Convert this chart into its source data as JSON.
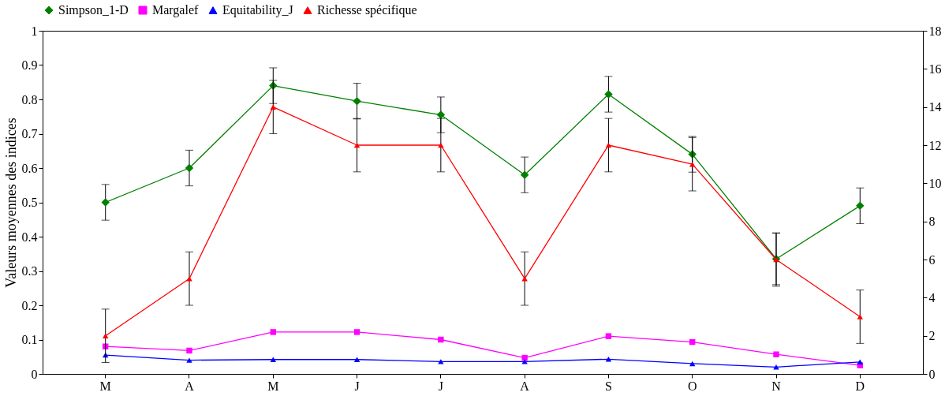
{
  "chart_data": {
    "type": "line",
    "ylabel": "Valeurs moyennes des indices",
    "categories": [
      "M",
      "A",
      "M",
      "J",
      "J",
      "A",
      "S",
      "O",
      "N",
      "D"
    ],
    "series": [
      {
        "name": "Simpson_1-D",
        "color": "#008000",
        "marker": "diamond",
        "values": [
          0.5,
          0.6,
          0.84,
          0.795,
          0.755,
          0.58,
          0.815,
          0.64,
          0.335,
          0.49
        ],
        "errors": [
          0.052,
          0.052,
          0.052,
          0.052,
          0.052,
          0.052,
          0.052,
          0.052,
          0.075,
          0.052
        ]
      },
      {
        "name": "Margalef",
        "color": "#ff00ff",
        "marker": "square",
        "values": [
          0.08,
          0.068,
          0.122,
          0.122,
          0.1,
          0.047,
          0.11,
          0.093,
          0.057,
          0.025
        ]
      },
      {
        "name": "Equitability_J",
        "color": "#0000ff",
        "marker": "triangle",
        "values": [
          0.055,
          0.04,
          0.042,
          0.042,
          0.036,
          0.036,
          0.043,
          0.03,
          0.02,
          0.035
        ]
      },
      {
        "name": "Richesse spécifique",
        "color": "#ff0000",
        "marker": "triangle",
        "axis": "y2",
        "values": [
          2,
          5,
          14,
          12,
          12,
          5,
          12,
          11,
          6,
          3
        ],
        "errors": [
          1.4,
          1.4,
          1.4,
          1.4,
          1.4,
          1.4,
          1.4,
          1.4,
          1.4,
          1.4
        ]
      }
    ],
    "ylim": [
      0,
      1
    ],
    "yticks": [
      0,
      0.1,
      0.2,
      0.3,
      0.4,
      0.5,
      0.6,
      0.7,
      0.8,
      0.9,
      1
    ],
    "y2lim": [
      0,
      18
    ],
    "y2ticks": [
      0,
      2,
      4,
      6,
      8,
      10,
      12,
      14,
      16,
      18
    ],
    "grid": false,
    "legend": "top",
    "line_style": "solid"
  }
}
